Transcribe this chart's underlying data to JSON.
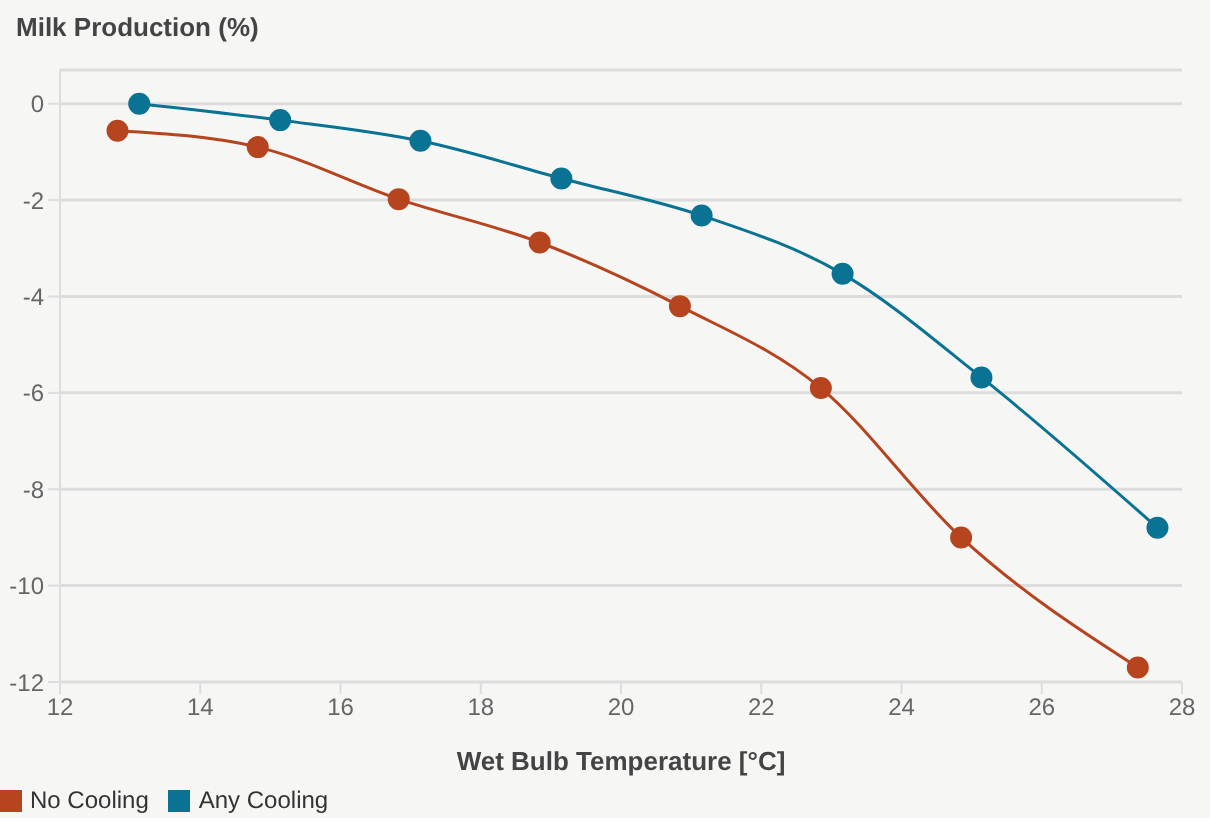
{
  "chart_data": {
    "type": "line",
    "title": "Milk Production (%)",
    "xlabel": "Wet Bulb Temperature [°C]",
    "xlim": [
      12,
      28
    ],
    "xticks": [
      12,
      14,
      16,
      18,
      20,
      22,
      24,
      26,
      28
    ],
    "ylim": [
      -12,
      0.7
    ],
    "yticks": [
      -12,
      -10,
      -8,
      -6,
      -4,
      -2,
      0
    ],
    "grid": "y",
    "legend": "bottom left",
    "marker": "circle",
    "line_style": "solid",
    "series": [
      {
        "name": "No Cooling",
        "color": "#b5441f",
        "x": [
          12.82,
          14.82,
          16.83,
          18.84,
          20.84,
          22.85,
          24.85,
          27.37
        ],
        "values": [
          -0.56,
          -0.9,
          -1.98,
          -2.88,
          -4.2,
          -5.9,
          -9.0,
          -11.7
        ]
      },
      {
        "name": "Any Cooling",
        "color": "#0a7393",
        "x": [
          13.13,
          15.14,
          17.14,
          19.15,
          21.15,
          23.16,
          25.14,
          27.65
        ],
        "values": [
          0,
          -0.34,
          -0.77,
          -1.55,
          -2.32,
          -3.53,
          -5.68,
          -8.8
        ]
      }
    ]
  }
}
